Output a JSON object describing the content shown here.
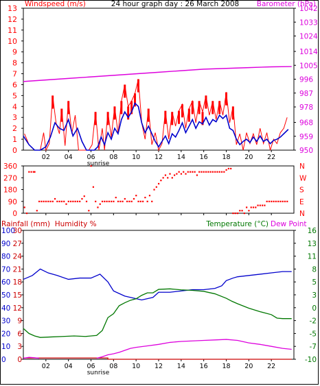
{
  "header": {
    "left": "Windspeed (m/s)",
    "center": "24 hour graph day : 26 March 2008",
    "right": "Barometer (hPa)"
  },
  "colors": {
    "frame": "#000000",
    "wind": "#ff0000",
    "gust": "#ff0000",
    "avg_wind": "#0000cc",
    "barometer": "#dd00dd",
    "direction": "#ff0000",
    "humidity": "#0000cc",
    "temperature": "#007700",
    "dewpoint": "#dd00dd",
    "rainfall": "#cc0000",
    "left_axis": "#ff0000",
    "right_axis": "#dd00dd",
    "humid_axis": "#0000cc",
    "temp_axis": "#007700"
  },
  "chart_data": [
    {
      "id": "wind-baro",
      "type": "line",
      "title": "24 hour graph day : 26 March 2008",
      "xlabel": "",
      "ylabel": "Windspeed (m/s)",
      "y2label": "Barometer (hPa)",
      "x_ticks": [
        "02",
        "04",
        "06",
        "08",
        "10",
        "12",
        "14",
        "16",
        "18",
        "20",
        "22"
      ],
      "ylim": [
        0,
        13
      ],
      "y_ticks": [
        "0",
        "1",
        "2",
        "3",
        "4",
        "5",
        "6",
        "7",
        "8",
        "9",
        "10",
        "11",
        "12",
        "13"
      ],
      "y2lim": [
        950,
        1042
      ],
      "y2_ticks": [
        "950",
        "959",
        "968",
        "978",
        "987",
        "996",
        "1005",
        "1014",
        "1024",
        "1033",
        "1042"
      ],
      "annotation": "sunrise",
      "series": [
        {
          "name": "Windspeed",
          "x": [
            0.1,
            0.5,
            1.0,
            1.5,
            1.8,
            2.0,
            2.3,
            2.6,
            2.9,
            3.2,
            3.4,
            3.7,
            4.0,
            4.3,
            4.6,
            4.9,
            5.2,
            5.5,
            5.8,
            6.1,
            6.4,
            6.7,
            7.0,
            7.2,
            7.5,
            7.8,
            8.1,
            8.4,
            8.7,
            9.0,
            9.3,
            9.6,
            9.9,
            10.2,
            10.5,
            10.8,
            11.1,
            11.4,
            11.7,
            12.0,
            12.3,
            12.6,
            12.9,
            13.2,
            13.5,
            13.8,
            14.1,
            14.4,
            14.7,
            15.0,
            15.3,
            15.6,
            15.9,
            16.2,
            16.5,
            16.8,
            17.1,
            17.4,
            17.7,
            18.0,
            18.3,
            18.6,
            18.9,
            19.2,
            19.5,
            19.8,
            20.1,
            20.4,
            20.7,
            21.0,
            21.3,
            21.6,
            21.9,
            22.2,
            22.5,
            22.8,
            23.1,
            23.4
          ],
          "y": [
            1.5,
            0.5,
            0,
            0,
            1.6,
            0,
            0.6,
            5.0,
            2.5,
            1.5,
            3.8,
            0.4,
            4.5,
            1.5,
            3.2,
            0,
            0,
            0,
            0,
            0.5,
            3.5,
            0,
            2.0,
            0,
            3.5,
            1.2,
            4.0,
            1.5,
            4.5,
            6.0,
            4.0,
            4.5,
            5.2,
            6.5,
            2.5,
            1.0,
            3.8,
            0.5,
            1.6,
            0,
            0.6,
            3.6,
            1.0,
            3.5,
            2.2,
            3.6,
            4.2,
            2.0,
            3.8,
            4.5,
            2.5,
            4.5,
            3.5,
            5.0,
            3.2,
            4.5,
            2.8,
            4.5,
            3.2,
            5.3,
            2.5,
            4.0,
            0.5,
            1.5,
            0,
            1.6,
            0.6,
            1.5,
            0.5,
            2.0,
            0.6,
            1.6,
            0,
            1.0,
            0.6,
            1.6,
            2.0,
            3.0
          ]
        },
        {
          "name": "Average windspeed",
          "x": [
            0,
            0.5,
            1.0,
            1.5,
            2.0,
            2.4,
            2.8,
            3.2,
            3.6,
            4.0,
            4.4,
            4.8,
            5.2,
            5.6,
            6.0,
            6.3,
            6.6,
            6.9,
            7.2,
            7.5,
            7.8,
            8.1,
            8.4,
            8.7,
            9.0,
            9.3,
            9.6,
            9.9,
            10.2,
            10.5,
            10.8,
            11.1,
            11.4,
            11.7,
            12.0,
            12.3,
            12.6,
            12.9,
            13.2,
            13.5,
            13.8,
            14.1,
            14.4,
            14.7,
            15.0,
            15.3,
            15.6,
            15.9,
            16.2,
            16.5,
            16.8,
            17.1,
            17.4,
            17.7,
            18.0,
            18.3,
            18.6,
            18.9,
            19.2,
            19.5,
            19.8,
            20.1,
            20.4,
            20.7,
            21.0,
            21.3,
            21.6,
            21.9,
            22.2,
            22.5,
            22.8,
            23.1,
            23.5
          ],
          "y": [
            1.3,
            0.5,
            0,
            0,
            0.3,
            1.2,
            2.5,
            2.0,
            1.8,
            2.8,
            1.3,
            2.0,
            0.8,
            0,
            0,
            0,
            0.3,
            1.2,
            0.5,
            1.6,
            1.0,
            2.0,
            1.5,
            2.8,
            3.5,
            3.0,
            3.5,
            4.3,
            4.0,
            2.5,
            1.6,
            2.2,
            1.5,
            0.8,
            0.3,
            0.8,
            1.3,
            0.6,
            1.5,
            1.2,
            1.8,
            2.5,
            1.6,
            2.2,
            2.8,
            2.0,
            2.6,
            2.4,
            3.0,
            2.3,
            2.8,
            2.6,
            3.2,
            2.9,
            3.2,
            2.0,
            1.8,
            1.0,
            0.5,
            0.8,
            1.0,
            0.7,
            1.2,
            0.8,
            1.3,
            0.8,
            1.0,
            0.6,
            0.9,
            1.0,
            1.2,
            1.5,
            1.9
          ]
        },
        {
          "name": "Barometer",
          "axis": "y2",
          "x": [
            0,
            2,
            4,
            6,
            8,
            10,
            12,
            14,
            16,
            18,
            20,
            22,
            23.8
          ],
          "y": [
            994.5,
            995.5,
            996.5,
            997.5,
            998.5,
            999.5,
            1000.5,
            1001.5,
            1002.5,
            1003.0,
            1003.5,
            1004.0,
            1004.2
          ]
        }
      ]
    },
    {
      "id": "direction",
      "type": "scatter",
      "xlabel": "",
      "ylabel": "",
      "x_ticks": [
        "02",
        "04",
        "06",
        "08",
        "10",
        "12",
        "14",
        "16",
        "18",
        "20",
        "22"
      ],
      "ylim": [
        0,
        360
      ],
      "y_ticks": [
        "0",
        "90",
        "180",
        "270",
        "360"
      ],
      "y2_ticks": [
        "N",
        "E",
        "S",
        "W",
        "N"
      ],
      "series": [
        {
          "name": "Wind direction",
          "x": [
            0.1,
            0.3,
            0.5,
            0.7,
            0.9,
            1.0,
            1.2,
            1.4,
            1.6,
            1.8,
            2.0,
            2.2,
            2.4,
            2.6,
            2.8,
            3.0,
            3.2,
            3.4,
            3.6,
            3.8,
            4.0,
            4.2,
            4.4,
            4.6,
            4.8,
            5.0,
            5.2,
            5.4,
            5.6,
            5.8,
            6.0,
            6.2,
            6.4,
            6.6,
            6.8,
            7.0,
            7.2,
            7.4,
            7.6,
            7.8,
            8.0,
            8.2,
            8.4,
            8.6,
            8.8,
            9.0,
            9.2,
            9.4,
            9.6,
            9.8,
            10.0,
            10.2,
            10.4,
            10.6,
            10.8,
            11.0,
            11.2,
            11.4,
            11.6,
            11.8,
            12.0,
            12.2,
            12.4,
            12.6,
            12.8,
            13.0,
            13.2,
            13.4,
            13.6,
            13.8,
            14.0,
            14.2,
            14.4,
            14.6,
            14.8,
            15.0,
            15.2,
            15.4,
            15.6,
            15.8,
            16.0,
            16.2,
            16.4,
            16.6,
            16.8,
            17.0,
            17.2,
            17.4,
            17.6,
            17.8,
            18.0,
            18.2,
            18.4,
            18.6,
            18.8,
            19.0,
            19.2,
            19.4,
            19.6,
            19.8,
            20.0,
            20.2,
            20.4,
            20.6,
            20.8,
            21.0,
            21.2,
            21.4,
            21.6,
            21.8,
            22.0,
            22.2,
            22.4,
            22.6,
            22.8,
            23.0,
            23.2,
            23.4
          ],
          "y": [
            45,
            0,
            315,
            315,
            315,
            315,
            20,
            90,
            90,
            90,
            90,
            90,
            90,
            90,
            110,
            90,
            90,
            90,
            90,
            70,
            90,
            90,
            90,
            90,
            90,
            90,
            110,
            130,
            90,
            20,
            360,
            200,
            90,
            45,
            70,
            90,
            90,
            90,
            90,
            90,
            90,
            120,
            90,
            90,
            90,
            110,
            90,
            90,
            90,
            110,
            135,
            90,
            90,
            90,
            120,
            90,
            135,
            90,
            180,
            200,
            225,
            250,
            270,
            290,
            270,
            300,
            270,
            290,
            300,
            315,
            300,
            315,
            300,
            315,
            315,
            315,
            315,
            290,
            315,
            315,
            315,
            315,
            315,
            315,
            315,
            315,
            315,
            315,
            315,
            315,
            330,
            340,
            340,
            0,
            0,
            0,
            20,
            20,
            0,
            45,
            20,
            45,
            45,
            45,
            60,
            60,
            60,
            60,
            90,
            90,
            90,
            90,
            90,
            90,
            90,
            90,
            90,
            90
          ]
        }
      ]
    },
    {
      "id": "humidity-temp",
      "type": "line",
      "xlabel": "",
      "ylabel": "Rainfall (mm)  Humidity %",
      "y2label": "Temperature (°C)",
      "y3label": "Dew Point",
      "x_ticks": [
        "02",
        "04",
        "06",
        "08",
        "10",
        "12",
        "14",
        "16",
        "18",
        "20",
        "22"
      ],
      "ylim": [
        0,
        100
      ],
      "y_ticks": [
        "0",
        "10",
        "20",
        "30",
        "40",
        "50",
        "60",
        "70",
        "80",
        "90",
        "100"
      ],
      "rain_ticks": [
        "0",
        "3",
        "6",
        "9",
        "12",
        "15",
        "18",
        "21",
        "24",
        "27",
        "30"
      ],
      "y2lim": [
        -10,
        16
      ],
      "y2_ticks": [
        "-10",
        "-7",
        "-5",
        "-2",
        "0",
        "3",
        "5",
        "8",
        "11",
        "13",
        "16"
      ],
      "annotation": "sunrise",
      "series": [
        {
          "name": "Humidity",
          "x": [
            0,
            0.8,
            1.5,
            2.2,
            3.0,
            4.0,
            5.0,
            6.0,
            6.8,
            7.5,
            8.0,
            8.5,
            9.0,
            9.5,
            10.0,
            10.5,
            11.0,
            11.5,
            12.0,
            13.0,
            14.0,
            15.0,
            16.0,
            17.0,
            17.6,
            18.0,
            18.6,
            19.0,
            20.0,
            21.0,
            22.0,
            23.0,
            23.8
          ],
          "y": [
            62,
            65,
            70,
            67,
            65,
            62,
            63,
            63,
            66,
            60,
            53,
            51,
            49,
            48,
            47,
            46,
            47,
            48,
            52,
            52,
            53,
            54,
            54,
            55,
            57,
            61,
            63,
            64,
            65,
            66,
            67,
            68,
            68
          ]
        },
        {
          "name": "Temperature",
          "axis": "y2",
          "x": [
            0,
            0.5,
            1.0,
            1.5,
            2.5,
            3.5,
            4.5,
            5.5,
            6.5,
            7.0,
            7.5,
            8.0,
            8.5,
            9.0,
            9.5,
            10.0,
            10.5,
            11.0,
            11.5,
            12.0,
            13.0,
            14.0,
            15.0,
            16.0,
            17.0,
            18.0,
            18.5,
            19.0,
            20.0,
            21.0,
            22.0,
            22.5,
            23.0,
            23.8
          ],
          "y": [
            -3.8,
            -4.8,
            -5.3,
            -5.6,
            -5.5,
            -5.4,
            -5.3,
            -5.4,
            -5.2,
            -4.2,
            -1.6,
            -0.8,
            0.8,
            1.4,
            1.9,
            2.2,
            2.9,
            3.4,
            3.4,
            4.1,
            4.2,
            4.0,
            3.9,
            3.7,
            3.2,
            2.3,
            1.7,
            1.2,
            0.3,
            -0.4,
            -1.0,
            -1.7,
            -1.8,
            -1.8
          ]
        },
        {
          "name": "Dew Point",
          "axis": "y2",
          "x": [
            6.5,
            7.0,
            7.5,
            8.0,
            8.5,
            9.0,
            9.5,
            10.0,
            11.0,
            12.0,
            13.0,
            14.0,
            15.0,
            16.0,
            17.0,
            18.0,
            19.0,
            20.0,
            21.0,
            22.0,
            23.0,
            23.8
          ],
          "y": [
            -9.8,
            -9.5,
            -9.1,
            -8.9,
            -8.6,
            -8.2,
            -7.8,
            -7.6,
            -7.3,
            -7.0,
            -6.6,
            -6.4,
            -6.3,
            -6.2,
            -6.1,
            -6.0,
            -6.2,
            -6.7,
            -7.0,
            -7.4,
            -7.8,
            -8.0
          ]
        },
        {
          "name": "Rainfall",
          "x": [
            0,
            7.5,
            7.5,
            23.8
          ],
          "y": [
            1,
            1,
            0,
            0
          ]
        }
      ]
    }
  ]
}
